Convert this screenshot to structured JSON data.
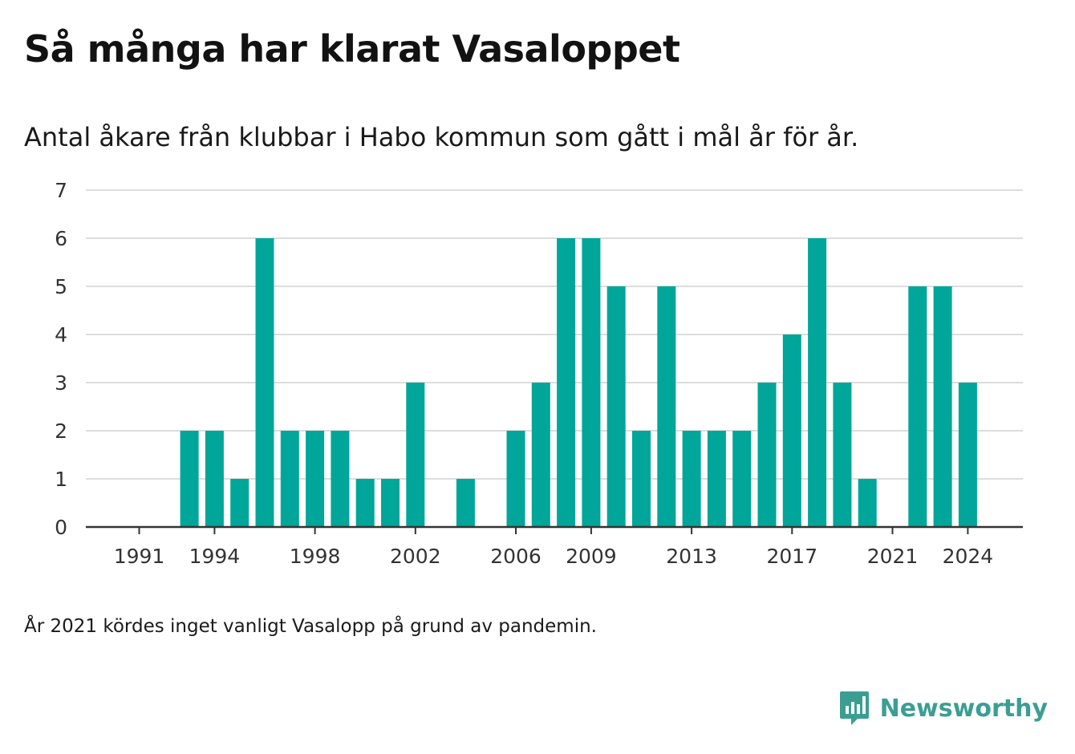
{
  "title": "Så många har klarat Vasaloppet",
  "subtitle": "Antal åkare från klubbar i Habo kommun som gått i mål år för år.",
  "note": "År 2021 kördes inget vanligt Vasalopp på grund av pandemin.",
  "brand": {
    "name": "Newsworthy",
    "color": "#3a9e93",
    "icon": "newsworthy-logo-icon"
  },
  "colors": {
    "bar": "#00a699",
    "grid": "#dddddd",
    "axis": "#333333",
    "text": "#333333"
  },
  "chart_data": {
    "type": "bar",
    "categories": [
      "1991",
      "1992",
      "1993",
      "1994",
      "1995",
      "1996",
      "1997",
      "1998",
      "1999",
      "2000",
      "2001",
      "2002",
      "2003",
      "2004",
      "2005",
      "2006",
      "2007",
      "2008",
      "2009",
      "2010",
      "2011",
      "2012",
      "2013",
      "2014",
      "2015",
      "2016",
      "2017",
      "2018",
      "2019",
      "2020",
      "2021",
      "2022",
      "2023",
      "2024"
    ],
    "values": [
      0,
      0,
      2,
      2,
      1,
      6,
      2,
      2,
      2,
      1,
      1,
      3,
      0,
      1,
      0,
      2,
      3,
      6,
      6,
      5,
      2,
      5,
      2,
      2,
      2,
      3,
      4,
      6,
      3,
      1,
      0,
      5,
      5,
      3
    ],
    "x_tick_labels": [
      "1991",
      "1994",
      "1998",
      "2002",
      "2006",
      "2009",
      "2013",
      "2017",
      "2021",
      "2024"
    ],
    "y_tick_labels": [
      "0",
      "1",
      "2",
      "3",
      "4",
      "5",
      "6",
      "7"
    ],
    "ylim": [
      0,
      7
    ],
    "grid": true,
    "xlabel": "",
    "ylabel": ""
  }
}
